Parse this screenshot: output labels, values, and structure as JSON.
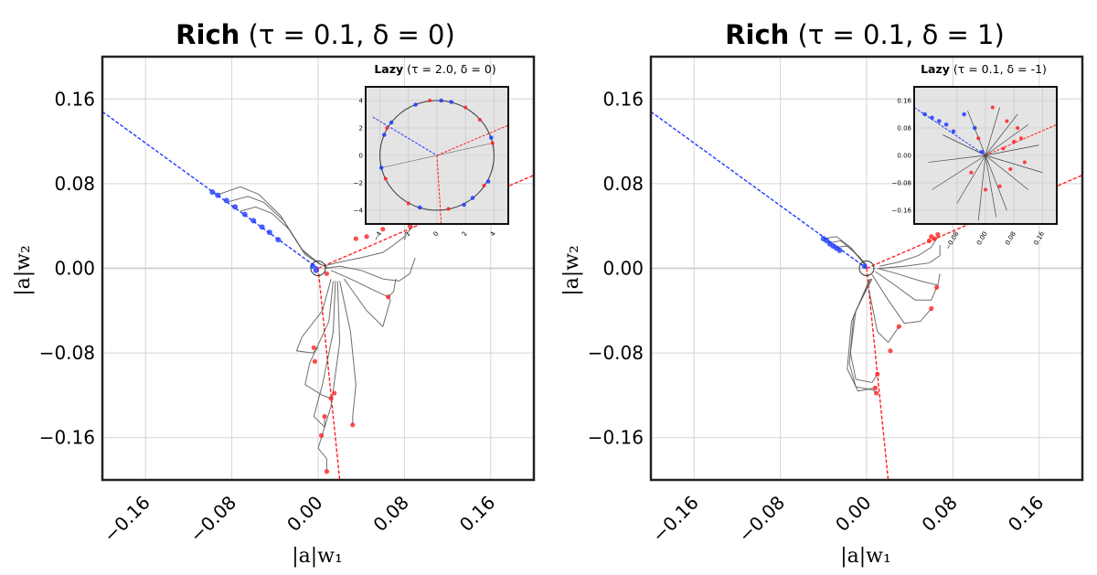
{
  "chart_data": [
    {
      "type": "line",
      "title": {
        "bold": "Rich",
        "rest": " (τ = 0.1, δ = 0)"
      },
      "xlabel": "|a|w₁",
      "ylabel": "|a|w₂",
      "xlim": [
        -0.2,
        0.2
      ],
      "ylim": [
        -0.2,
        0.2
      ],
      "xticks": [
        -0.16,
        -0.08,
        0.0,
        0.08,
        0.16
      ],
      "yticks": [
        -0.16,
        -0.08,
        0.0,
        0.08,
        0.16
      ],
      "xtick_labels": [
        "−0.16",
        "−0.08",
        "0.00",
        "0.08",
        "0.16"
      ],
      "ytick_labels": [
        "−0.16",
        "−0.08",
        "0.00",
        "0.08",
        "0.16"
      ],
      "grid": true,
      "colors": {
        "blue": "#1f3cff",
        "red": "#ff2020",
        "traj": "#555555"
      },
      "lines": {
        "blue_direction": [
          [
            -0.2,
            0.148
          ],
          [
            0.0,
            0.0
          ]
        ],
        "red_direction_1": [
          [
            0.0,
            0.0
          ],
          [
            0.2,
            0.088
          ]
        ],
        "red_direction_2": [
          [
            0.0,
            0.0
          ],
          [
            0.02,
            -0.2
          ]
        ]
      },
      "points_blue": [
        [
          -0.098,
          0.072
        ],
        [
          -0.093,
          0.069
        ],
        [
          -0.085,
          0.064
        ],
        [
          -0.077,
          0.058
        ],
        [
          -0.068,
          0.051
        ],
        [
          -0.06,
          0.045
        ],
        [
          -0.052,
          0.039
        ],
        [
          -0.045,
          0.034
        ],
        [
          -0.037,
          0.027
        ],
        [
          -0.005,
          0.002
        ],
        [
          -0.002,
          -0.002
        ]
      ],
      "points_red": [
        [
          0.035,
          0.028
        ],
        [
          0.045,
          0.03
        ],
        [
          0.06,
          0.037
        ],
        [
          0.085,
          0.04
        ],
        [
          0.065,
          -0.027
        ],
        [
          0.008,
          -0.005
        ],
        [
          -0.004,
          -0.075
        ],
        [
          -0.003,
          -0.088
        ],
        [
          0.012,
          -0.123
        ],
        [
          0.006,
          -0.14
        ],
        [
          0.008,
          -0.192
        ],
        [
          0.032,
          -0.148
        ],
        [
          0.003,
          -0.158
        ],
        [
          0.015,
          -0.118
        ]
      ],
      "trajectories": [
        [
          [
            -0.092,
            0.07
          ],
          [
            -0.072,
            0.077
          ],
          [
            -0.055,
            0.07
          ],
          [
            -0.035,
            0.05
          ],
          [
            -0.015,
            0.018
          ],
          [
            0.0,
            0.005
          ],
          [
            0.01,
            0.0
          ]
        ],
        [
          [
            -0.083,
            0.063
          ],
          [
            -0.065,
            0.068
          ],
          [
            -0.05,
            0.062
          ],
          [
            -0.032,
            0.045
          ],
          [
            -0.014,
            0.016
          ],
          [
            0.002,
            0.004
          ]
        ],
        [
          [
            -0.072,
            0.054
          ],
          [
            -0.058,
            0.058
          ],
          [
            -0.043,
            0.052
          ],
          [
            -0.027,
            0.037
          ],
          [
            -0.012,
            0.013
          ],
          [
            0.003,
            0.003
          ]
        ],
        [
          [
            0.088,
            0.04
          ],
          [
            0.08,
            0.03
          ],
          [
            0.07,
            0.022
          ],
          [
            0.06,
            0.015
          ],
          [
            0.04,
            0.01
          ],
          [
            0.02,
            0.006
          ],
          [
            0.005,
            0.002
          ]
        ],
        [
          [
            0.09,
            0.01
          ],
          [
            0.085,
            -0.005
          ],
          [
            0.075,
            -0.012
          ],
          [
            0.06,
            -0.01
          ],
          [
            0.04,
            -0.002
          ],
          [
            0.02,
            0.002
          ],
          [
            0.006,
            0.0
          ]
        ],
        [
          [
            0.072,
            -0.01
          ],
          [
            0.07,
            -0.022
          ],
          [
            0.065,
            -0.027
          ],
          [
            0.05,
            -0.02
          ],
          [
            0.03,
            -0.01
          ],
          [
            0.012,
            -0.002
          ]
        ],
        [
          [
            0.012,
            -0.01
          ],
          [
            0.004,
            -0.04
          ],
          [
            -0.015,
            -0.065
          ],
          [
            -0.02,
            -0.078
          ],
          [
            -0.005,
            -0.08
          ],
          [
            0.0,
            -0.075
          ]
        ],
        [
          [
            0.014,
            -0.012
          ],
          [
            0.01,
            -0.05
          ],
          [
            -0.008,
            -0.09
          ],
          [
            -0.012,
            -0.11
          ],
          [
            0.004,
            -0.12
          ],
          [
            0.012,
            -0.123
          ]
        ],
        [
          [
            0.016,
            -0.012
          ],
          [
            0.014,
            -0.06
          ],
          [
            0.004,
            -0.11
          ],
          [
            -0.004,
            -0.14
          ],
          [
            0.006,
            -0.15
          ],
          [
            0.006,
            -0.14
          ]
        ],
        [
          [
            0.018,
            -0.012
          ],
          [
            0.02,
            -0.07
          ],
          [
            0.012,
            -0.13
          ],
          [
            0.0,
            -0.17
          ],
          [
            0.008,
            -0.18
          ],
          [
            0.008,
            -0.192
          ]
        ],
        [
          [
            0.02,
            -0.012
          ],
          [
            0.03,
            -0.06
          ],
          [
            0.035,
            -0.11
          ],
          [
            0.032,
            -0.14
          ],
          [
            0.032,
            -0.148
          ]
        ],
        [
          [
            0.024,
            -0.01
          ],
          [
            0.045,
            -0.04
          ],
          [
            0.06,
            -0.055
          ],
          [
            0.067,
            -0.03
          ],
          [
            0.065,
            -0.027
          ]
        ]
      ],
      "inset": {
        "title": {
          "bold": "Lazy",
          "rest": " (τ = 2.0, δ = 0)"
        },
        "xlim": [
          -5,
          5
        ],
        "ylim": [
          -5,
          5
        ],
        "yticks": [
          -4,
          -2,
          0,
          2,
          4
        ],
        "ytick_labels": [
          "−4",
          "−2",
          "0",
          "2",
          "4"
        ],
        "xticks": [
          -4,
          -2,
          0,
          2,
          4
        ],
        "xtick_labels": [
          "−4",
          "−2",
          "0",
          "2",
          "4"
        ],
        "circle_radius": 4,
        "points_blue": [
          [
            -3.7,
            1.5
          ],
          [
            -1.5,
            3.7
          ],
          [
            1.0,
            3.9
          ],
          [
            3.8,
            1.3
          ],
          [
            3.6,
            -1.9
          ],
          [
            1.9,
            -3.6
          ],
          [
            -1.2,
            -3.8
          ],
          [
            -3.9,
            -0.9
          ],
          [
            -3.2,
            2.4
          ],
          [
            0.3,
            4.0
          ],
          [
            2.5,
            -3.1
          ]
        ],
        "points_red": [
          [
            -3.5,
            2.0
          ],
          [
            -0.5,
            4.0
          ],
          [
            2.0,
            3.5
          ],
          [
            3.9,
            0.9
          ],
          [
            3.3,
            -2.2
          ],
          [
            0.8,
            -3.9
          ],
          [
            -2.0,
            -3.5
          ],
          [
            -3.6,
            -1.7
          ],
          [
            3.0,
            2.6
          ]
        ]
      }
    },
    {
      "type": "line",
      "title": {
        "bold": "Rich",
        "rest": " (τ = 0.1, δ = 1)"
      },
      "xlabel": "|a|w₁",
      "ylabel": "|a|w₂",
      "xlim": [
        -0.2,
        0.2
      ],
      "ylim": [
        -0.2,
        0.2
      ],
      "xticks": [
        -0.16,
        -0.08,
        0.0,
        0.08,
        0.16
      ],
      "yticks": [
        -0.16,
        -0.08,
        0.0,
        0.08,
        0.16
      ],
      "xtick_labels": [
        "−0.16",
        "−0.08",
        "0.00",
        "0.08",
        "0.16"
      ],
      "ytick_labels": [
        "−0.16",
        "−0.08",
        "0.00",
        "0.08",
        "0.16"
      ],
      "grid": true,
      "colors": {
        "blue": "#1f3cff",
        "red": "#ff2020",
        "traj": "#555555"
      },
      "lines": {
        "blue_direction": [
          [
            -0.2,
            0.148
          ],
          [
            0.0,
            0.0
          ]
        ],
        "red_direction_1": [
          [
            0.0,
            0.0
          ],
          [
            0.2,
            0.088
          ]
        ],
        "red_direction_2": [
          [
            0.0,
            0.0
          ],
          [
            0.02,
            -0.2
          ]
        ]
      },
      "points_blue": [
        [
          -0.04,
          0.028
        ],
        [
          -0.037,
          0.026
        ],
        [
          -0.034,
          0.023
        ],
        [
          -0.031,
          0.021
        ],
        [
          -0.028,
          0.019
        ],
        [
          -0.025,
          0.017
        ],
        [
          -0.002,
          0.002
        ]
      ],
      "points_red": [
        [
          0.06,
          0.03
        ],
        [
          0.063,
          0.028
        ],
        [
          0.066,
          0.032
        ],
        [
          0.058,
          0.026
        ],
        [
          0.065,
          -0.018
        ],
        [
          0.06,
          -0.038
        ],
        [
          0.03,
          -0.055
        ],
        [
          0.022,
          -0.078
        ],
        [
          0.01,
          -0.1
        ],
        [
          0.008,
          -0.113
        ],
        [
          0.009,
          -0.118
        ]
      ],
      "trajectories": [
        [
          [
            -0.04,
            0.028
          ],
          [
            -0.028,
            0.03
          ],
          [
            -0.015,
            0.02
          ],
          [
            -0.005,
            0.008
          ],
          [
            0.0,
            0.001
          ]
        ],
        [
          [
            -0.035,
            0.024
          ],
          [
            -0.024,
            0.026
          ],
          [
            -0.012,
            0.016
          ],
          [
            -0.003,
            0.005
          ]
        ],
        [
          [
            -0.029,
            0.02
          ],
          [
            -0.018,
            0.021
          ],
          [
            -0.008,
            0.012
          ],
          [
            0.0,
            0.003
          ]
        ],
        [
          [
            0.066,
            0.03
          ],
          [
            0.06,
            0.02
          ],
          [
            0.048,
            0.012
          ],
          [
            0.03,
            0.006
          ],
          [
            0.012,
            0.002
          ]
        ],
        [
          [
            0.068,
            0.022
          ],
          [
            0.068,
            0.012
          ],
          [
            0.058,
            0.005
          ],
          [
            0.035,
            0.002
          ],
          [
            0.012,
            0.0
          ]
        ],
        [
          [
            0.068,
            -0.005
          ],
          [
            0.066,
            -0.016
          ],
          [
            0.05,
            -0.012
          ],
          [
            0.028,
            -0.005
          ],
          [
            0.01,
            0.0
          ]
        ],
        [
          [
            0.065,
            -0.018
          ],
          [
            0.06,
            -0.03
          ],
          [
            0.045,
            -0.03
          ],
          [
            0.025,
            -0.015
          ],
          [
            0.008,
            -0.003
          ]
        ],
        [
          [
            0.06,
            -0.038
          ],
          [
            0.05,
            -0.05
          ],
          [
            0.035,
            -0.052
          ],
          [
            0.02,
            -0.03
          ],
          [
            0.005,
            -0.006
          ]
        ],
        [
          [
            0.03,
            -0.055
          ],
          [
            0.02,
            -0.07
          ],
          [
            0.01,
            -0.06
          ],
          [
            0.002,
            -0.02
          ]
        ],
        [
          [
            0.005,
            -0.01
          ],
          [
            -0.01,
            -0.04
          ],
          [
            -0.015,
            -0.08
          ],
          [
            -0.01,
            -0.105
          ],
          [
            0.005,
            -0.108
          ],
          [
            0.01,
            -0.1
          ]
        ],
        [
          [
            0.004,
            -0.01
          ],
          [
            -0.012,
            -0.045
          ],
          [
            -0.016,
            -0.09
          ],
          [
            -0.01,
            -0.112
          ],
          [
            0.006,
            -0.115
          ],
          [
            0.009,
            -0.118
          ]
        ],
        [
          [
            0.003,
            -0.01
          ],
          [
            -0.014,
            -0.05
          ],
          [
            -0.018,
            -0.095
          ],
          [
            -0.008,
            -0.116
          ],
          [
            0.008,
            -0.113
          ]
        ]
      ],
      "inset": {
        "title": {
          "bold": "Lazy",
          "rest": " (τ = 0.1, δ = -1)"
        },
        "xlim": [
          -0.2,
          0.2
        ],
        "ylim": [
          -0.2,
          0.2
        ],
        "yticks": [
          -0.16,
          -0.08,
          0.0,
          0.08,
          0.16
        ],
        "ytick_labels": [
          "−0.16",
          "−0.08",
          "0.00",
          "0.08",
          "0.16"
        ],
        "xticks": [
          -0.08,
          0.0,
          0.08,
          0.16
        ],
        "xtick_labels": [
          "−0.08",
          "0.00",
          "0.08",
          "0.16"
        ],
        "points_blue": [
          [
            -0.17,
            0.12
          ],
          [
            -0.15,
            0.11
          ],
          [
            -0.13,
            0.1
          ],
          [
            -0.11,
            0.09
          ],
          [
            -0.09,
            0.07
          ],
          [
            -0.06,
            0.12
          ],
          [
            -0.03,
            0.08
          ],
          [
            -0.01,
            0.01
          ]
        ],
        "points_red": [
          [
            0.08,
            0.04
          ],
          [
            0.1,
            0.05
          ],
          [
            0.06,
            0.1
          ],
          [
            0.02,
            0.14
          ],
          [
            -0.02,
            0.05
          ],
          [
            0.05,
            0.02
          ],
          [
            0.11,
            -0.02
          ],
          [
            0.04,
            -0.09
          ],
          [
            0.0,
            -0.1
          ],
          [
            -0.04,
            -0.05
          ],
          [
            0.09,
            0.08
          ],
          [
            0.07,
            -0.04
          ]
        ],
        "star_lines": [
          [
            -0.15,
            -0.1
          ],
          [
            -0.08,
            -0.14
          ],
          [
            0.03,
            -0.18
          ],
          [
            0.06,
            -0.16
          ],
          [
            0.12,
            -0.1
          ],
          [
            0.15,
            0.03
          ],
          [
            0.12,
            0.09
          ],
          [
            0.04,
            0.14
          ],
          [
            -0.05,
            0.13
          ],
          [
            -0.12,
            0.06
          ],
          [
            -0.16,
            -0.02
          ],
          [
            0.16,
            -0.05
          ],
          [
            -0.02,
            -0.19
          ],
          [
            0.09,
            0.12
          ]
        ]
      }
    }
  ]
}
